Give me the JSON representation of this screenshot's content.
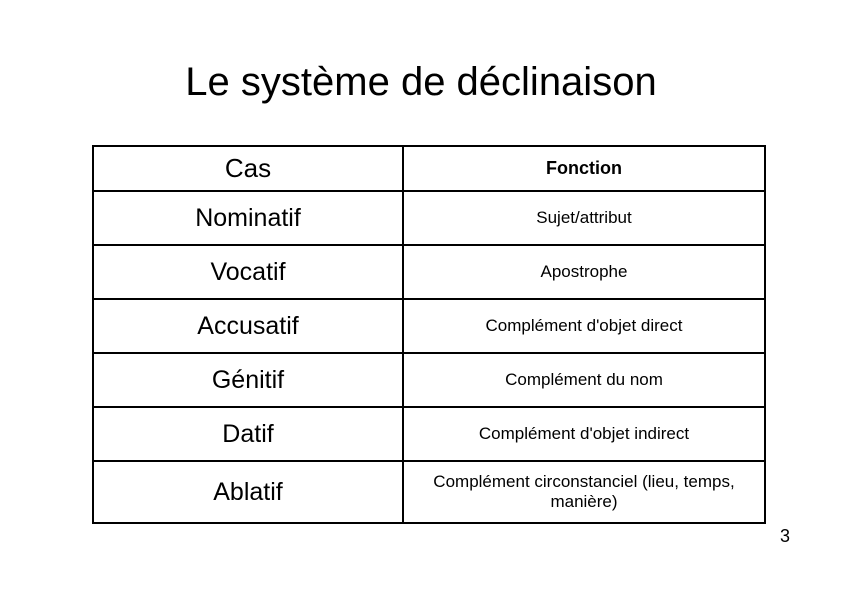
{
  "title": "Le système de déclinaison",
  "table": {
    "columns": [
      "Cas",
      "Fonction"
    ],
    "rows": [
      {
        "cas": "Nominatif",
        "fonction": "Sujet/attribut"
      },
      {
        "cas": "Vocatif",
        "fonction": "Apostrophe"
      },
      {
        "cas": "Accusatif",
        "fonction": "Complément d'objet direct"
      },
      {
        "cas": "Génitif",
        "fonction": "Complément du nom"
      },
      {
        "cas": "Datif",
        "fonction": "Complément d'objet indirect"
      },
      {
        "cas": "Ablatif",
        "fonction": "Complément circonstanciel (lieu, temps, manière)"
      }
    ]
  },
  "page_number": "3",
  "style": {
    "bg_color": "#ffffff",
    "text_color": "#000000",
    "border_color": "#000000",
    "title_fontsize": 40,
    "cas_fontsize": 25,
    "fonc_fontsize": 17,
    "header_cas_fontsize": 26,
    "header_fonc_fontsize": 18
  }
}
